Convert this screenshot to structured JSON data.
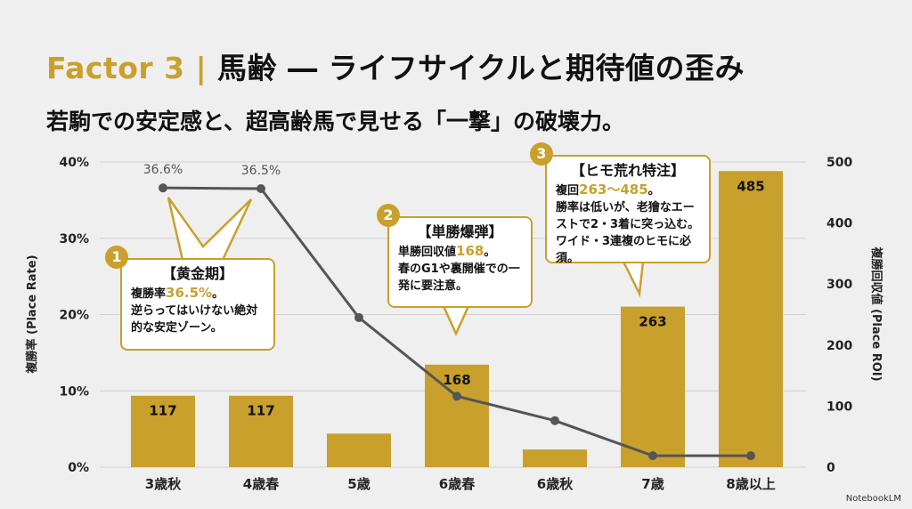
{
  "header": {
    "title_prefix": "Factor 3 |",
    "title_main": " 馬齢 ― ライフサイクルと期待値の歪み",
    "subtitle": "若駒での安定感と、超高齢馬で見せる「一撃」の破壊力。"
  },
  "callouts": [
    {
      "num": "1",
      "heading": "【黄金期】",
      "pre": "複勝率",
      "value": "36.5%",
      "post": "。",
      "body": "逆らってはいけない絶対的な安定ゾーン。"
    },
    {
      "num": "2",
      "heading": "【単勝爆弾】",
      "pre": "単勝回収値",
      "value": "168",
      "post": "。",
      "body": "春のG1や裏開催での一発に要注意。"
    },
    {
      "num": "3",
      "heading": "【ヒモ荒れ特注】",
      "pre": "複回",
      "value": "263〜485",
      "post": "。",
      "body": "勝率は低いが、老獪なエーストで2・3着に突っ込む。ワイド・3連複のヒモに必須。"
    }
  ],
  "logo": "NotebookLM",
  "colors": {
    "bar": "#c9a02c",
    "line": "#555555",
    "grid": "#d0d0d0"
  },
  "chart_data": {
    "type": "bar+line",
    "categories": [
      "3歳秋",
      "4歳春",
      "5歳",
      "6歳春",
      "6歳秋",
      "7歳",
      "8歳以上"
    ],
    "series": [
      {
        "name": "複勝回収値 (Place ROI)",
        "type": "bar",
        "axis": "right",
        "values": [
          117,
          117,
          55,
          168,
          29,
          263,
          485
        ],
        "labels": [
          "117",
          "117",
          "",
          "168",
          "",
          "263",
          "485"
        ]
      },
      {
        "name": "複勝率 (Place Rate)",
        "type": "line",
        "axis": "left",
        "values": [
          36.6,
          36.5,
          19.6,
          9.3,
          6.1,
          1.5,
          1.5
        ],
        "labels": [
          "36.6%",
          "36.5%",
          "",
          "",
          "",
          "",
          ""
        ]
      }
    ],
    "left_axis": {
      "label": "複勝率 (Place Rate)",
      "range": [
        0,
        40
      ],
      "ticks": [
        "0%",
        "10%",
        "20%",
        "30%",
        "40%"
      ]
    },
    "right_axis": {
      "label": "複勝回収値 (Place ROI)",
      "range": [
        0,
        500
      ],
      "ticks": [
        "0",
        "100",
        "200",
        "300",
        "400",
        "500"
      ]
    },
    "grid": true
  }
}
